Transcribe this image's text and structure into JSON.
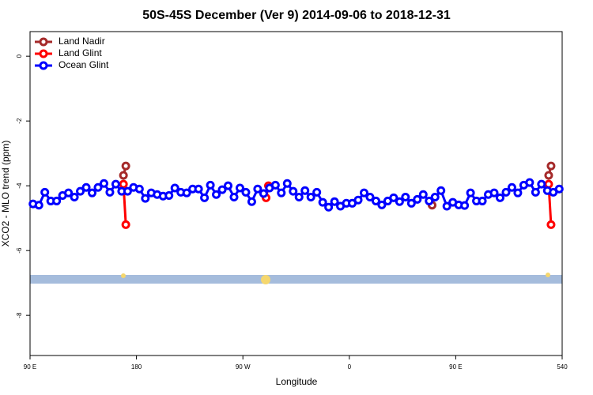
{
  "chart_data": {
    "type": "line",
    "title": "50S-45S December (Ver 9)   2014-09-06 to 2018-12-31",
    "x_label": "Longitude",
    "y_label": "XCO2 - MLO trend (ppm)",
    "xlim": [
      90,
      540
    ],
    "xticks": [
      {
        "value": 90,
        "label": "90 E"
      },
      180,
      {
        "value": 270,
        "label": "90 W"
      },
      {
        "value": 360,
        "label": "0"
      },
      {
        "value": 450,
        "label": "90 E"
      },
      540
    ],
    "ylim": [
      -9.24,
      0.76
    ],
    "yticks": [
      0,
      -2,
      -4,
      -6,
      -8
    ],
    "legend": "top-left",
    "series": [
      {
        "name": "Land Nadir",
        "color": "#a52a2a",
        "x": [
          169,
          171,
          null,
          430,
          null,
          528.6,
          530.6
        ],
        "values": [
          -3.68,
          -3.39,
          null,
          -4.6,
          null,
          -3.68,
          -3.39
        ]
      },
      {
        "name": "Land Glint",
        "color": "#ff0000",
        "x": [
          169,
          171,
          null,
          289.6,
          291.6,
          null,
          528.6,
          530.6
        ],
        "values": [
          -3.95,
          -5.2,
          null,
          -4.37,
          -4.0,
          null,
          -3.95,
          -5.2
        ]
      },
      {
        "name": "Ocean Glint",
        "color": "#0000ff",
        "x": [
          92.5,
          97.5,
          102.5,
          107.5,
          112.5,
          117.5,
          122.5,
          127.5,
          132.5,
          137.5,
          142.5,
          147.5,
          152.5,
          157.5,
          162.5,
          167.5,
          172.5,
          177.5,
          182.5,
          187.5,
          192.5,
          197.5,
          202.5,
          207.5,
          212.5,
          217.5,
          222.5,
          227.5,
          232.5,
          237.5,
          242.5,
          247.5,
          252.5,
          257.5,
          262.5,
          267.5,
          272.5,
          277.5,
          282.5,
          287.5,
          292.5,
          297.5,
          302.5,
          307.5,
          312.5,
          317.5,
          322.5,
          327.5,
          332.5,
          337.5,
          342.5,
          347.5,
          352.5,
          357.5,
          362.5,
          367.5,
          372.5,
          377.5,
          382.5,
          387.5,
          392.5,
          397.5,
          402.5,
          407.5,
          412.5,
          417.5,
          422.5,
          427.5,
          432.5,
          437.5,
          442.5,
          447.5,
          452.5,
          457.5,
          462.5,
          467.5,
          472.5,
          477.5,
          482.5,
          487.5,
          492.5,
          497.5,
          502.5,
          507.5,
          512.5,
          517.5,
          522.5,
          527.5,
          532.5,
          537.5
        ],
        "values": [
          -4.56,
          -4.6,
          -4.2,
          -4.47,
          -4.47,
          -4.3,
          -4.22,
          -4.35,
          -4.17,
          -4.05,
          -4.22,
          -4.05,
          -3.93,
          -4.2,
          -3.95,
          -4.17,
          -4.17,
          -4.05,
          -4.1,
          -4.39,
          -4.22,
          -4.27,
          -4.32,
          -4.3,
          -4.07,
          -4.2,
          -4.22,
          -4.1,
          -4.1,
          -4.37,
          -3.98,
          -4.27,
          -4.12,
          -4.0,
          -4.35,
          -4.07,
          -4.2,
          -4.49,
          -4.1,
          -4.24,
          -4.07,
          -3.98,
          -4.22,
          -3.93,
          -4.17,
          -4.35,
          -4.15,
          -4.35,
          -4.2,
          -4.51,
          -4.66,
          -4.49,
          -4.63,
          -4.54,
          -4.54,
          -4.44,
          -4.22,
          -4.35,
          -4.47,
          -4.59,
          -4.47,
          -4.37,
          -4.49,
          -4.35,
          -4.54,
          -4.42,
          -4.27,
          -4.47,
          -4.35,
          -4.15,
          -4.63,
          -4.51,
          -4.59,
          -4.61,
          -4.22,
          -4.47,
          -4.47,
          -4.27,
          -4.22,
          -4.37,
          -4.2,
          -4.05,
          -4.22,
          -3.98,
          -3.9,
          -4.2,
          -3.95,
          -4.15,
          -4.2,
          -4.1
        ]
      }
    ]
  }
}
